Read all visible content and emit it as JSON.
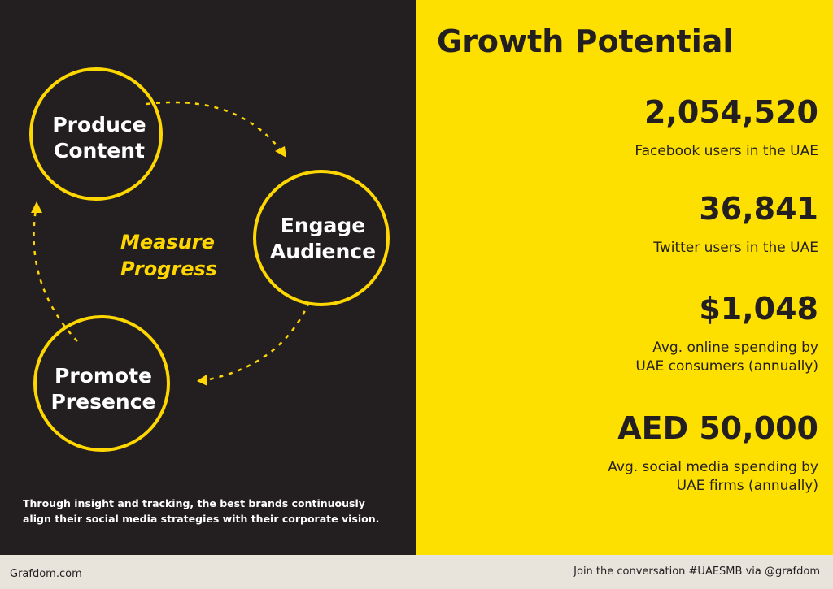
{
  "cycle": {
    "nodes": [
      {
        "lines": [
          "Produce",
          "Content"
        ]
      },
      {
        "lines": [
          "Engage",
          "Audience"
        ]
      },
      {
        "lines": [
          "Promote",
          "Presence"
        ]
      }
    ],
    "center": [
      "Measure",
      "Progress"
    ],
    "caption": [
      "Through insight and tracking, the best brands continuously",
      "align their social media strategies with their corporate vision."
    ]
  },
  "stats": {
    "title": "Growth Potential",
    "items": [
      {
        "value": "2,054,520",
        "label": [
          "Facebook users in the UAE"
        ]
      },
      {
        "value": "36,841",
        "label": [
          "Twitter users in the UAE"
        ]
      },
      {
        "value": "$1,048",
        "label": [
          "Avg. online spending by",
          "UAE consumers (annually)"
        ]
      },
      {
        "value": "AED 50,000",
        "label": [
          "Avg. social media spending by",
          "UAE firms (annually)"
        ]
      }
    ]
  },
  "footer": {
    "left": "Grafdom.com",
    "right": "Join the conversation #UAESMB via @grafdom"
  }
}
